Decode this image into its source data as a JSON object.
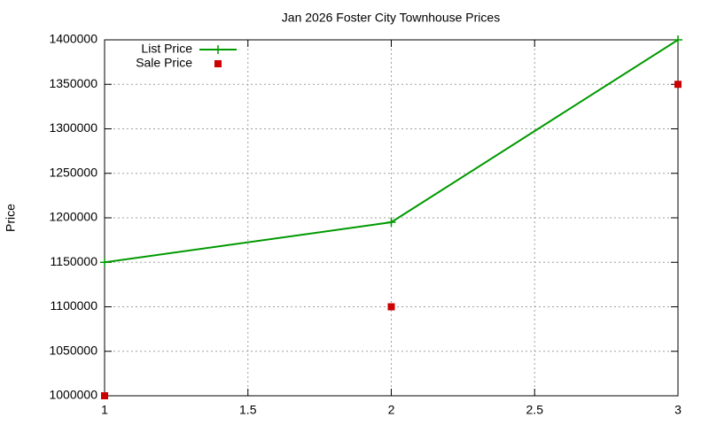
{
  "chart_data": {
    "type": "line",
    "title": "Jan 2026 Foster City Townhouse Prices",
    "ylabel": "Price",
    "x": [
      1,
      2,
      3
    ],
    "series": [
      {
        "name": "List Price",
        "color": "#009900",
        "style": "linespoints",
        "values": [
          1150000,
          1195000,
          1400000
        ]
      },
      {
        "name": "Sale Price",
        "color": "#cc0000",
        "style": "points",
        "values": [
          1000000,
          1100000,
          1350000
        ]
      }
    ],
    "xlim": [
      1,
      3
    ],
    "xticks": [
      1,
      1.5,
      2,
      2.5,
      3
    ],
    "ylim": [
      1000000,
      1400000
    ],
    "yticks": [
      1000000,
      1050000,
      1100000,
      1150000,
      1200000,
      1250000,
      1300000,
      1350000,
      1400000
    ],
    "grid": true,
    "legend": "top-left"
  }
}
